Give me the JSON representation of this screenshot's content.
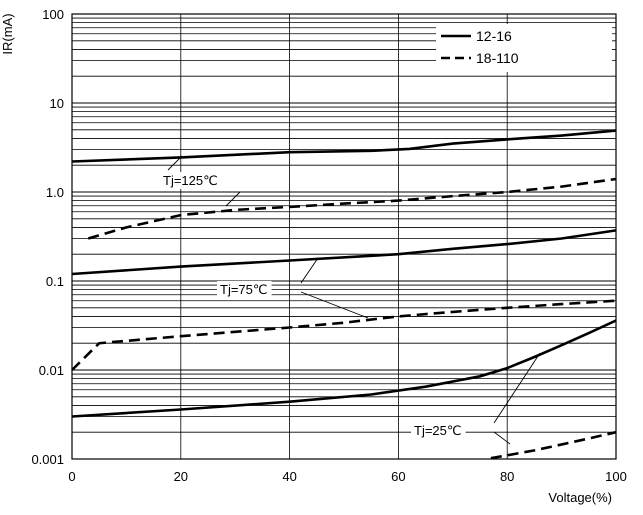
{
  "chart_data": {
    "type": "line",
    "title": "",
    "xlabel": "Voltage(%)",
    "ylabel": "IR(mA)",
    "y_scale": "log",
    "xlim": [
      0,
      100
    ],
    "ylim": [
      0.001,
      100
    ],
    "grid": true,
    "legend_position": "top-right",
    "x_ticks": [
      "0",
      "20",
      "40",
      "60",
      "80",
      "100"
    ],
    "y_ticks": [
      {
        "value": 100,
        "label": "100"
      },
      {
        "value": 10,
        "label": "10"
      },
      {
        "value": 1,
        "label": "1.0"
      },
      {
        "value": 0.1,
        "label": "0.1"
      },
      {
        "value": 0.01,
        "label": "0.01"
      },
      {
        "value": 0.001,
        "label": "0.001"
      }
    ],
    "legend": [
      {
        "label": "12-16",
        "style": "solid"
      },
      {
        "label": "18-110",
        "style": "dashed"
      }
    ],
    "series": [
      {
        "name": "12-16",
        "group": "Tj=125℃",
        "style": "solid",
        "x": [
          0,
          20,
          40,
          55,
          62,
          70,
          80,
          90,
          100
        ],
        "y": [
          2.2,
          2.45,
          2.8,
          2.9,
          3.05,
          3.5,
          3.9,
          4.3,
          4.9
        ]
      },
      {
        "name": "18-110",
        "group": "Tj=125℃",
        "style": "dashed",
        "x": [
          3,
          10,
          20,
          30,
          40,
          50,
          60,
          70,
          80,
          90,
          100
        ],
        "y": [
          0.3,
          0.4,
          0.55,
          0.63,
          0.68,
          0.74,
          0.8,
          0.9,
          1.0,
          1.15,
          1.4
        ]
      },
      {
        "name": "12-16",
        "group": "Tj=75℃",
        "style": "solid",
        "x": [
          0,
          20,
          40,
          60,
          70,
          80,
          90,
          100
        ],
        "y": [
          0.12,
          0.145,
          0.17,
          0.2,
          0.23,
          0.26,
          0.3,
          0.37
        ]
      },
      {
        "name": "18-110",
        "group": "Tj=75℃",
        "style": "dashed",
        "x": [
          0,
          5,
          20,
          40,
          50,
          60,
          70,
          80,
          90,
          100
        ],
        "y": [
          0.01,
          0.02,
          0.024,
          0.03,
          0.034,
          0.04,
          0.045,
          0.05,
          0.055,
          0.06
        ]
      },
      {
        "name": "12-16",
        "group": "Tj=25℃",
        "style": "solid",
        "x": [
          0,
          20,
          40,
          55,
          65,
          75,
          80,
          85,
          90,
          95,
          100
        ],
        "y": [
          0.003,
          0.0036,
          0.0044,
          0.0053,
          0.0065,
          0.0085,
          0.0105,
          0.014,
          0.019,
          0.026,
          0.036
        ]
      },
      {
        "name": "18-110",
        "group": "Tj=25℃",
        "style": "dashed",
        "x": [
          77,
          85,
          95,
          100
        ],
        "y": [
          0.00102,
          0.00125,
          0.0017,
          0.002
        ]
      }
    ],
    "annotations": [
      {
        "text": "Tj=125℃",
        "points_to": "Tj=125℃ curves"
      },
      {
        "text": "Tj=75℃",
        "points_to": "Tj=75℃ curves"
      },
      {
        "text": "Tj=25℃",
        "points_to": "Tj=25℃ curves"
      }
    ]
  }
}
